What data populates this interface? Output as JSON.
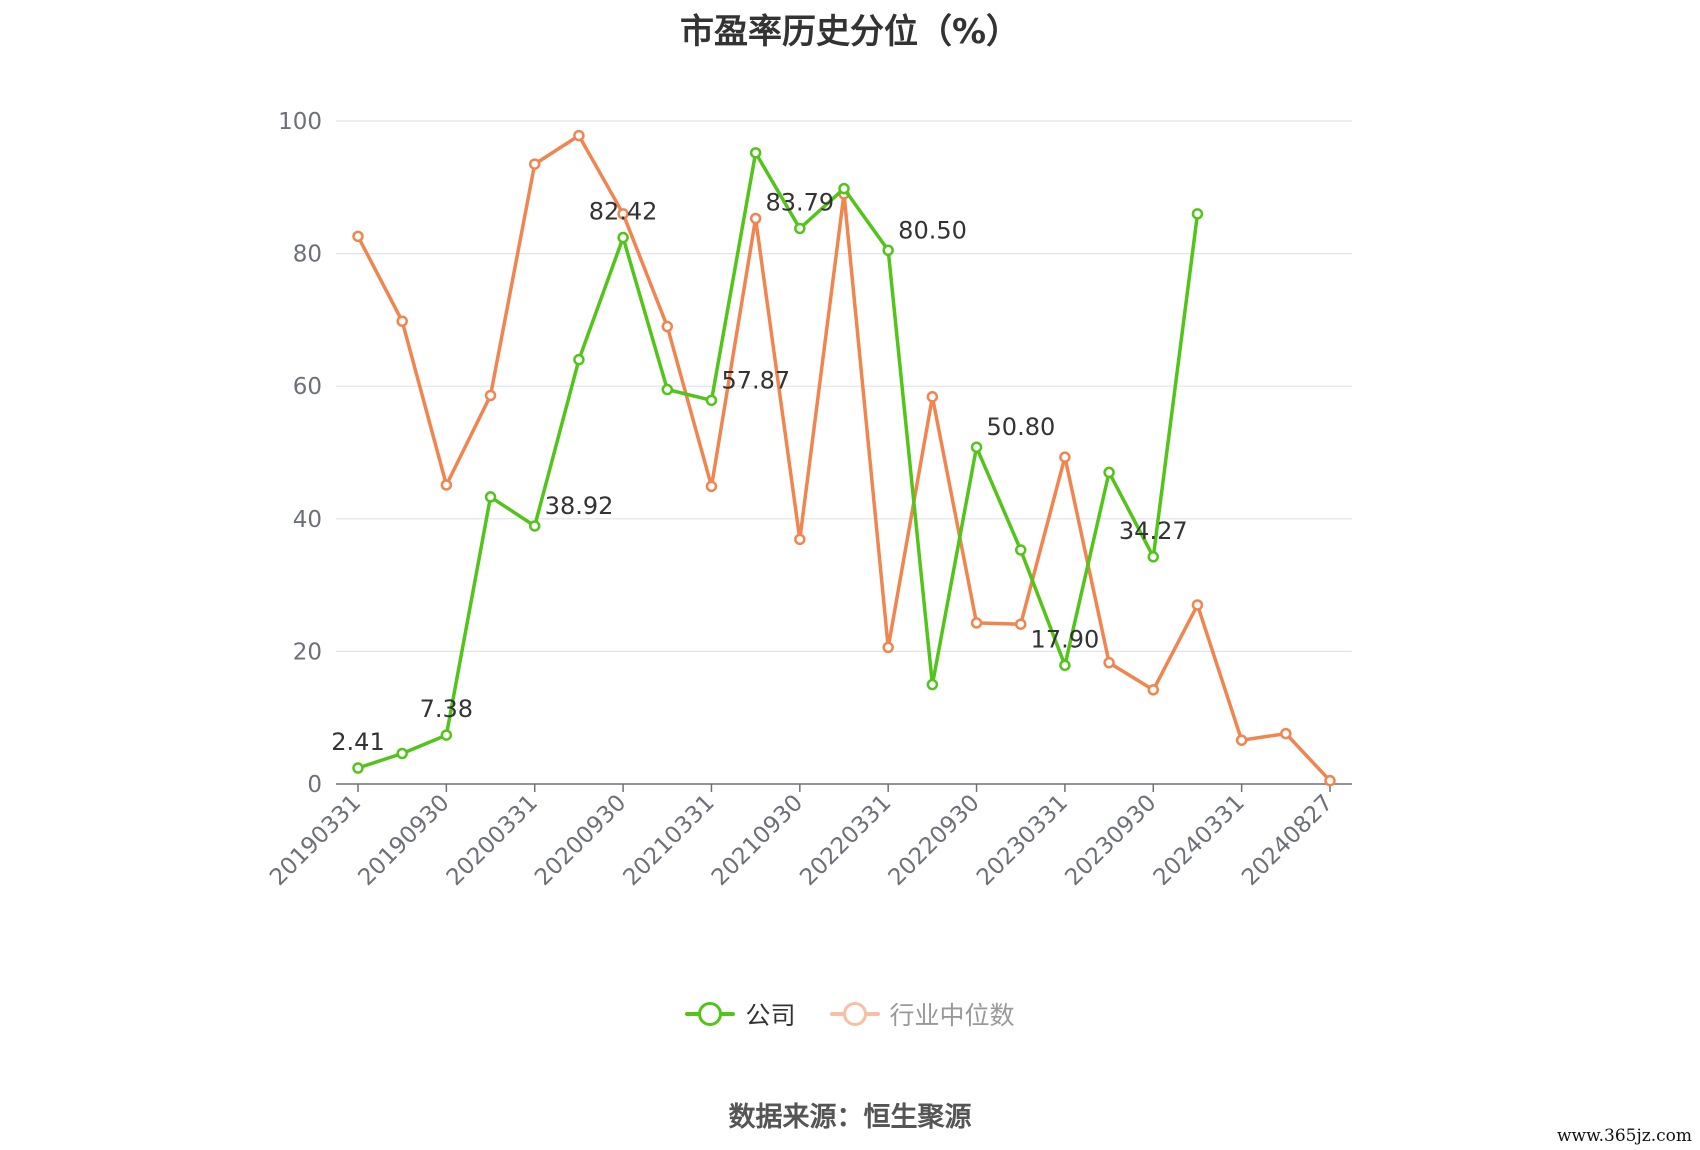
{
  "chart_data": {
    "type": "line",
    "title": "市盈率历史分位（%）",
    "xlabel": "",
    "ylabel": "",
    "ylim": [
      0,
      100
    ],
    "yticks": [
      0,
      20,
      40,
      60,
      80,
      100
    ],
    "grid": true,
    "legend_position": "bottom",
    "x": [
      "20190331",
      "20190630",
      "20190930",
      "20191231",
      "20200331",
      "20200630",
      "20200930",
      "20201231",
      "20210331",
      "20210630",
      "20210930",
      "20211231",
      "20220331",
      "20220630",
      "20220930",
      "20221231",
      "20230331",
      "20230630",
      "20230930",
      "20231231",
      "20240331",
      "20240630",
      "20240827"
    ],
    "xtick_labels": [
      "20190331",
      "20190930",
      "20200331",
      "20200930",
      "20210331",
      "20210930",
      "20220331",
      "20220930",
      "20230331",
      "20230930",
      "20240331",
      "20240827"
    ],
    "series": [
      {
        "name": "公司",
        "color": "#52c41a",
        "values": [
          2.41,
          4.6,
          7.38,
          43.3,
          38.92,
          64.0,
          82.42,
          59.5,
          57.87,
          95.2,
          83.79,
          89.8,
          80.5,
          15.0,
          50.8,
          35.3,
          17.9,
          47.0,
          34.27,
          86.0,
          null,
          null,
          null
        ],
        "labels": [
          "2.41",
          null,
          "7.38",
          null,
          "38.92",
          null,
          "82.42",
          null,
          "57.87",
          null,
          "83.79",
          null,
          "80.50",
          null,
          "50.80",
          null,
          "17.90",
          null,
          "34.27",
          null,
          null,
          null,
          null
        ]
      },
      {
        "name": "行业中位数",
        "color": "#f0854f",
        "values": [
          82.6,
          69.8,
          45.1,
          58.6,
          93.5,
          97.8,
          86.0,
          69.0,
          44.9,
          85.3,
          36.9,
          89.0,
          20.6,
          58.4,
          24.3,
          24.1,
          49.3,
          18.3,
          14.2,
          27.0,
          6.6,
          7.6,
          0.5
        ],
        "labels": []
      }
    ]
  },
  "legend": {
    "items": [
      {
        "label": "公司",
        "color": "#52c41a"
      },
      {
        "label": "行业中位数",
        "color": "#f0854f"
      }
    ]
  },
  "footer": {
    "source": "数据来源：恒生聚源",
    "watermark": "www.365jz.com"
  },
  "colors": {
    "grid": "#dfe3ef",
    "axis": "#6e7079",
    "tick_text": "#6e7079",
    "label_text": "#333333",
    "legend_inactive": "#999999"
  }
}
